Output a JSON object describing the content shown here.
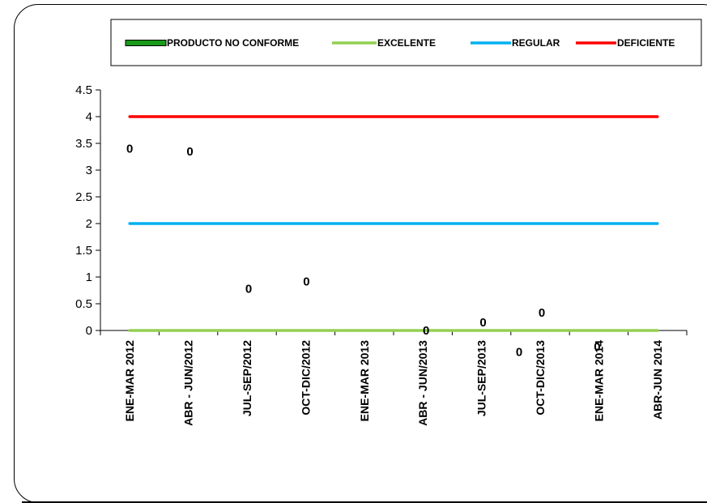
{
  "chart_data": {
    "type": "line",
    "categories": [
      "ENE-MAR 2012",
      "ABR - JUN/2012",
      "JUL-SEP/2012",
      "OCT-DIC/2012",
      "ENE-MAR 2013",
      "ABR - JUN/2013",
      "JUL-SEP/2013",
      "OCT-DIC/2013",
      "ENE-MAR 2014",
      "ABR-JUN 2014"
    ],
    "series": [
      {
        "name": "PRODUCTO NO CONFORME",
        "values": [
          0,
          0,
          0,
          0,
          0,
          0,
          0,
          0,
          0,
          0
        ],
        "color": "#1a9a1a"
      },
      {
        "name": "EXCELENTE",
        "values": [
          0,
          0,
          0,
          0,
          0,
          0,
          0,
          0,
          0,
          0
        ],
        "color": "#92d050"
      },
      {
        "name": "REGULAR",
        "values": [
          2,
          2,
          2,
          2,
          2,
          2,
          2,
          2,
          2,
          2
        ],
        "color": "#00b0f0"
      },
      {
        "name": "DEFICIENTE",
        "values": [
          4,
          4,
          4,
          4,
          4,
          4,
          4,
          4,
          4,
          4
        ],
        "color": "#ff0000"
      }
    ],
    "data_labels": [
      {
        "text": "0",
        "category": "ENE-MAR 2012",
        "y": 3.4
      },
      {
        "text": "0",
        "category": "ABR - JUN/2012",
        "y": 3.35
      },
      {
        "text": "0",
        "category": "JUL-SEP/2012",
        "y": 0.78
      },
      {
        "text": "0",
        "category": "OCT-DIC/2012",
        "y": 0.92
      },
      {
        "text": "0",
        "category": "ABR - JUN/2013",
        "y": 0.0
      },
      {
        "text": "0",
        "category": "JUL-SEP/2013",
        "y": 0.15
      },
      {
        "text": "0",
        "category": "OCT-DIC/2013",
        "y": 0.33
      },
      {
        "text": "0",
        "category": "OCT-DIC/2013",
        "y": -0.4
      },
      {
        "text": "0",
        "category": "ENE-MAR 2014",
        "y": -0.3
      }
    ],
    "ylim": [
      0,
      4.5
    ],
    "yticks": [
      "0",
      "0.5",
      "1",
      "1.5",
      "2",
      "2.5",
      "3",
      "3.5",
      "4",
      "4.5"
    ],
    "grid": false,
    "legend_position": "top"
  }
}
